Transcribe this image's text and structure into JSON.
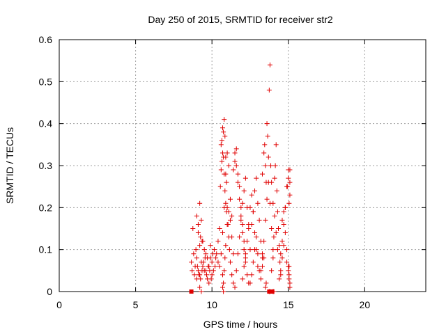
{
  "chart_data": {
    "type": "scatter",
    "title": "Day 250 of 2015, SRMTID for receiver str2",
    "xlabel": "GPS time / hours",
    "ylabel": "SRMTID / TECUs",
    "xlim": [
      0,
      24
    ],
    "ylim": [
      0,
      0.6
    ],
    "xticks": [
      0,
      5,
      10,
      15,
      20
    ],
    "xtick_labels": [
      "0",
      "5",
      "10",
      "15",
      "20"
    ],
    "yticks": [
      0,
      0.1,
      0.2,
      0.3,
      0.4,
      0.5,
      0.6
    ],
    "ytick_labels": [
      "0",
      "0.1",
      "0.2",
      "0.3",
      "0.4",
      "0.5",
      "0.6"
    ],
    "grid": true,
    "marker": "+",
    "color": "#e00000",
    "series": [
      {
        "name": "str2",
        "x": [
          8.65,
          8.75,
          8.9,
          9.0,
          9.1,
          9.2,
          9.3,
          9.4,
          9.5,
          9.6,
          9.7,
          9.8,
          9.9,
          10.0,
          10.1,
          8.8,
          8.95,
          9.05,
          9.15,
          9.25,
          9.35,
          9.45,
          9.55,
          9.65,
          9.75,
          9.85,
          9.95,
          10.05,
          10.15,
          10.25,
          8.7,
          8.85,
          9.0,
          9.2,
          9.4,
          9.6,
          9.8,
          10.0,
          10.2,
          10.4,
          9.0,
          9.1,
          9.2,
          9.3,
          9.1,
          9.25,
          9.35,
          9.5,
          9.7,
          9.9,
          10.3,
          10.4,
          10.5,
          10.55,
          10.6,
          10.65,
          10.7,
          10.75,
          10.8,
          10.85,
          10.9,
          10.95,
          11.0,
          11.05,
          11.1,
          11.15,
          11.2,
          10.5,
          10.6,
          10.7,
          10.8,
          10.9,
          11.0,
          11.1,
          11.2,
          11.3,
          10.6,
          10.65,
          10.7,
          10.75,
          10.8,
          10.85,
          10.9,
          10.95,
          10.7,
          10.75,
          10.8,
          10.85,
          10.9,
          11.0,
          11.1,
          11.2,
          11.3,
          11.4,
          11.3,
          11.4,
          11.5,
          11.6,
          11.7,
          11.8,
          11.9,
          12.0,
          12.1,
          12.2,
          12.3,
          12.4,
          12.5,
          11.4,
          11.5,
          11.6,
          11.7,
          11.8,
          11.9,
          12.0,
          12.1,
          12.2,
          12.3,
          12.4,
          11.5,
          11.6,
          11.7,
          11.8,
          11.9,
          12.0,
          12.1,
          12.2,
          12.0,
          12.1,
          12.2,
          12.3,
          12.4,
          12.5,
          12.6,
          12.7,
          12.8,
          12.9,
          13.0,
          12.5,
          12.6,
          12.7,
          12.8,
          12.9,
          13.0,
          13.1,
          13.2,
          13.3,
          13.4,
          12.6,
          12.7,
          12.8,
          12.9,
          13.0,
          13.1,
          13.2,
          13.3,
          13.2,
          13.3,
          13.4,
          13.5,
          13.6,
          13.7,
          13.8,
          13.9,
          14.0,
          13.3,
          13.4,
          13.45,
          13.5,
          13.55,
          13.6,
          13.65,
          13.7,
          13.75,
          13.8,
          13.85,
          13.9,
          14.0,
          14.1,
          14.2,
          14.3,
          13.9,
          14.0,
          14.05,
          14.1,
          14.15,
          14.2,
          14.25,
          14.3,
          14.35,
          14.4,
          14.45,
          14.5,
          14.4,
          14.5,
          14.6,
          14.7,
          14.8,
          14.9,
          15.0,
          15.05,
          15.1,
          14.5,
          14.6,
          14.7,
          14.8,
          14.9,
          15.0,
          15.05,
          15.1,
          14.6,
          14.7,
          14.8,
          14.9,
          15.0,
          15.1,
          13.8,
          13.75,
          14.0,
          14.05,
          13.5,
          13.55,
          10.7,
          10.75,
          9.3,
          9.2,
          15.05,
          15.1,
          15.0,
          14.95,
          15.1,
          15.05
        ],
        "y": [
          0.07,
          0.15,
          0.06,
          0.08,
          0.05,
          0.04,
          0.07,
          0.06,
          0.05,
          0.09,
          0.03,
          0.06,
          0.08,
          0.07,
          0.05,
          0.09,
          0.1,
          0.06,
          0.04,
          0.03,
          0.05,
          0.07,
          0.08,
          0.04,
          0.06,
          0.05,
          0.03,
          0.09,
          0.1,
          0.08,
          0.05,
          0.04,
          0.03,
          0.11,
          0.12,
          0.05,
          0.02,
          0.04,
          0.06,
          0.07,
          0.18,
          0.16,
          0.21,
          0.17,
          0.14,
          0.13,
          0.12,
          0.1,
          0.08,
          0.11,
          0.09,
          0.12,
          0.15,
          0.25,
          0.29,
          0.31,
          0.33,
          0.38,
          0.41,
          0.37,
          0.32,
          0.26,
          0.2,
          0.16,
          0.13,
          0.1,
          0.07,
          0.06,
          0.09,
          0.14,
          0.2,
          0.28,
          0.33,
          0.3,
          0.22,
          0.18,
          0.35,
          0.36,
          0.39,
          0.32,
          0.28,
          0.24,
          0.21,
          0.19,
          0.04,
          0.02,
          0.05,
          0.08,
          0.11,
          0.16,
          0.19,
          0.17,
          0.13,
          0.09,
          0.04,
          0.02,
          0.01,
          0.05,
          0.09,
          0.13,
          0.17,
          0.21,
          0.24,
          0.27,
          0.2,
          0.15,
          0.1,
          0.29,
          0.31,
          0.3,
          0.26,
          0.22,
          0.18,
          0.14,
          0.1,
          0.07,
          0.04,
          0.02,
          0.33,
          0.34,
          0.28,
          0.25,
          0.2,
          0.16,
          0.12,
          0.08,
          0.03,
          0.06,
          0.09,
          0.12,
          0.16,
          0.2,
          0.23,
          0.19,
          0.14,
          0.1,
          0.06,
          0.02,
          0.04,
          0.07,
          0.1,
          0.13,
          0.09,
          0.05,
          0.03,
          0.06,
          0.08,
          0.16,
          0.19,
          0.24,
          0.27,
          0.21,
          0.17,
          0.12,
          0.09,
          0.05,
          0.08,
          0.12,
          0.17,
          0.22,
          0.26,
          0.21,
          0.15,
          0.1,
          0.28,
          0.33,
          0.35,
          0.3,
          0.26,
          0.4,
          0.37,
          0.32,
          0.48,
          0.54,
          0.3,
          0.26,
          0.21,
          0.18,
          0.14,
          0.1,
          0.05,
          0.08,
          0.13,
          0.27,
          0.3,
          0.35,
          0.24,
          0.19,
          0.15,
          0.11,
          0.07,
          0.04,
          0.03,
          0.05,
          0.08,
          0.11,
          0.14,
          0.1,
          0.06,
          0.04,
          0.02,
          0.09,
          0.12,
          0.16,
          0.2,
          0.07,
          0.05,
          0.03,
          0.01,
          0.17,
          0.19,
          0.2,
          0.25,
          0.29,
          0.26,
          0.0,
          0.0,
          0.0,
          0.0,
          0.01,
          0.02,
          0.01,
          0.0,
          0.0,
          0.01,
          0.21,
          0.23,
          0.27,
          0.25,
          0.29,
          0.06
        ]
      }
    ],
    "zero_markers": {
      "shape": "square",
      "x": [
        8.65,
        13.75,
        13.95
      ],
      "y": [
        0,
        0,
        0
      ]
    }
  }
}
